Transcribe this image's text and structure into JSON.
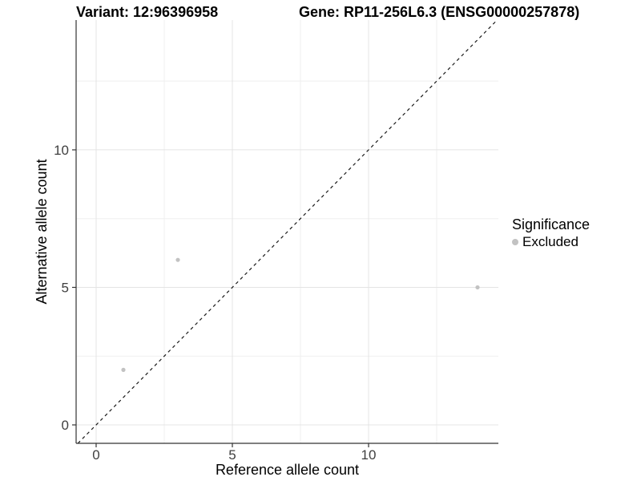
{
  "chart_data": {
    "type": "scatter",
    "title_left": "Variant: 12:96396958",
    "title_right": "Gene: RP11-256L6.3 (ENSG00000257878)",
    "xlabel": "Reference allele count",
    "ylabel": "Alternative allele count",
    "xlim": [
      -0.735,
      14.765
    ],
    "ylim": [
      -0.67,
      14.72
    ],
    "x_ticks": [
      0,
      5,
      10
    ],
    "y_ticks": [
      0,
      5,
      10
    ],
    "x_minor_ticks": [
      2.5,
      7.5,
      12.5
    ],
    "y_minor_ticks": [
      2.5,
      7.5,
      12.5
    ],
    "grid": true,
    "series": [
      {
        "name": "Excluded",
        "color": "#c2c2c2",
        "points": [
          {
            "x": 1,
            "y": 2
          },
          {
            "x": 3,
            "y": 6
          },
          {
            "x": 14,
            "y": 5
          }
        ]
      }
    ],
    "abline": {
      "slope": 1,
      "intercept": 0,
      "style": "dashed",
      "color": "#1a1a1a"
    },
    "legend": {
      "title": "Significance",
      "position": "right",
      "entries": [
        {
          "label": "Excluded",
          "color": "#c2c2c2"
        }
      ]
    }
  },
  "colors": {
    "background": "#ffffff",
    "axis_line": "#333333",
    "tick_mark": "#333333",
    "tick_label": "#404040",
    "axis_title": "#000000",
    "grid_major": "#e4e4e4",
    "grid_minor": "#efefef",
    "point": "#c2c2c2",
    "dashed_line": "#1a1a1a"
  }
}
